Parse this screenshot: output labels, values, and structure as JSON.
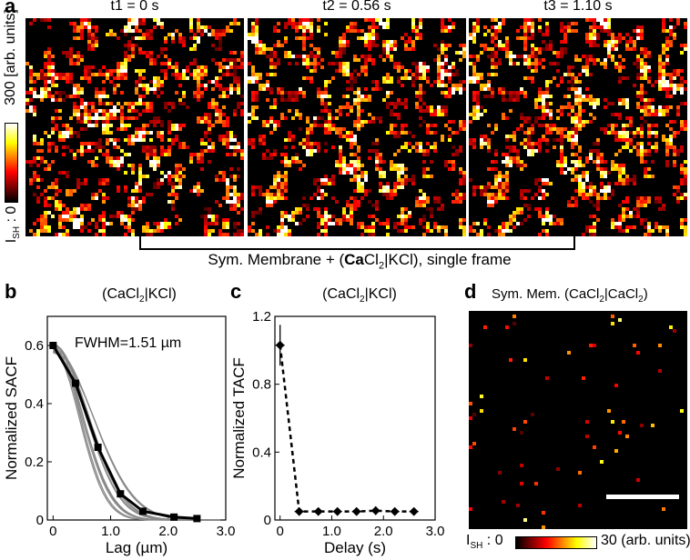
{
  "panel_a": {
    "label": "a",
    "frames": [
      {
        "title": "t1 = 0 s"
      },
      {
        "title": "t2 = 0.56 s"
      },
      {
        "title": "t3 = 1.10 s"
      }
    ],
    "bracket_text_pre": "Sym. Membrane + (",
    "bracket_text_bold": "Ca",
    "bracket_text_post1": "Cl",
    "bracket_sub": "2",
    "bracket_text_post2": "|KCl), single frame",
    "colorbar": {
      "max_label": "300 [arb. units]",
      "min_prefix": "I",
      "min_sub": "SH",
      "min_suffix": " : 0"
    }
  },
  "panel_b": {
    "label": "b",
    "title_pre": "(CaCl",
    "title_sub": "2",
    "title_post": "|KCl)",
    "annotation": "FWHM=1.51 µm",
    "chart_data": {
      "type": "line",
      "xlabel": "Lag (µm)",
      "ylabel": "Normalized SACF",
      "xlim": [
        -0.1,
        3.0
      ],
      "ylim": [
        0,
        0.7
      ],
      "xticks": [
        "0",
        "1.0",
        "2.0",
        "3.0"
      ],
      "yticks": [
        "0",
        "0.2",
        "0.4",
        "0.6"
      ],
      "mean_series": {
        "x": [
          0,
          0.39,
          0.78,
          1.17,
          1.56,
          2.1,
          2.5
        ],
        "y": [
          0.6,
          0.47,
          0.25,
          0.09,
          0.03,
          0.01,
          0.005
        ]
      },
      "individual_series_count": 12
    }
  },
  "panel_c": {
    "label": "c",
    "title_pre": "(CaCl",
    "title_sub": "2",
    "title_post": "|KCl)",
    "chart_data": {
      "type": "line",
      "xlabel": "Delay (s)",
      "ylabel": "Normalized TACF",
      "xlim": [
        -0.1,
        3.0
      ],
      "ylim": [
        0,
        1.2
      ],
      "xticks": [
        "0",
        "1.0",
        "2.0",
        "3.0"
      ],
      "yticks": [
        "0",
        "0.4",
        "0.8",
        "1.2"
      ],
      "x": [
        0,
        0.37,
        0.74,
        1.11,
        1.48,
        1.85,
        2.22,
        2.59
      ],
      "y": [
        1.03,
        0.05,
        0.05,
        0.05,
        0.05,
        0.055,
        0.05,
        0.05
      ],
      "err": [
        0.12,
        0.02,
        0.02,
        0.02,
        0.02,
        0.025,
        0.02,
        0.02
      ]
    }
  },
  "panel_d": {
    "label": "d",
    "title_pre": "Sym. Mem. (CaCl",
    "title_sub1": "2",
    "title_mid": "|CaCl",
    "title_sub2": "2",
    "title_post": ")",
    "colorbar": {
      "min_prefix": "I",
      "min_sub": "SH",
      "min_suffix": " : 0",
      "max_label": "30 (arb. units)"
    }
  },
  "colors": {
    "hot_low": "#000000",
    "hot_mid": "#cc1500",
    "hot_high": "#ffe060",
    "hot_max": "#ffffff",
    "series_gray": "#888888"
  }
}
